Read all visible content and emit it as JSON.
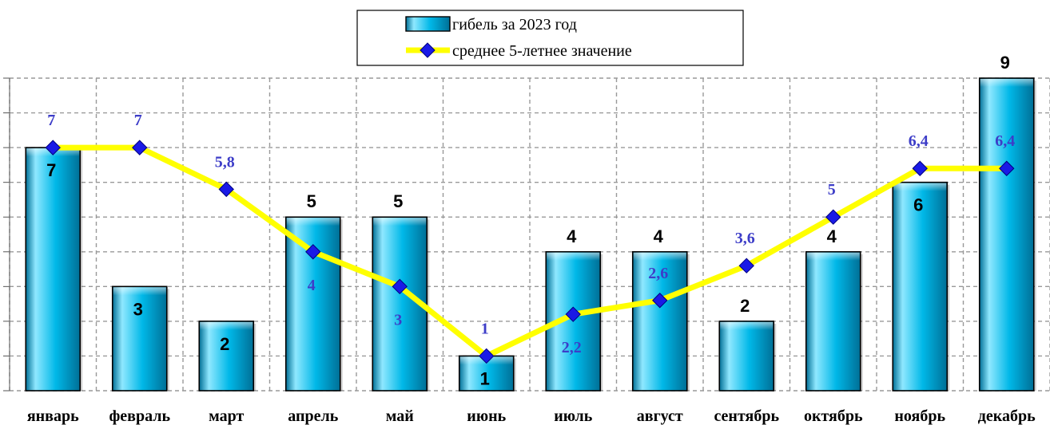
{
  "chart_data": {
    "type": "bar",
    "categories": [
      "январь",
      "февраль",
      "март",
      "апрель",
      "май",
      "июнь",
      "июль",
      "август",
      "сентябрь",
      "октябрь",
      "ноябрь",
      "декабрь"
    ],
    "series": [
      {
        "name": "гибель за 2023 год",
        "type": "bar",
        "values": [
          7,
          3,
          2,
          5,
          5,
          1,
          4,
          4,
          2,
          4,
          6,
          9
        ],
        "labels": [
          "7",
          "3",
          "2",
          "5",
          "5",
          "1",
          "4",
          "4",
          "2",
          "4",
          "6",
          "9"
        ]
      },
      {
        "name": "среднее 5-летнее значение",
        "type": "line",
        "values": [
          7,
          7,
          5.8,
          4,
          3,
          1,
          2.2,
          2.6,
          3.6,
          5,
          6.4,
          6.4
        ],
        "labels": [
          "7",
          "7",
          "5,8",
          "4",
          "3",
          "1",
          "2,2",
          "2,6",
          "3,6",
          "5",
          "6,4",
          "6,4"
        ]
      }
    ],
    "ylim": [
      0,
      9
    ],
    "grid": true,
    "legend": "top-center",
    "colors": {
      "bar_fill": "#00b8e8",
      "bar_light": "#8fe8ff",
      "bar_dark": "#006f96",
      "line": "#ffff00",
      "marker": "#1a1ae6",
      "line_label": "#3d3dc8",
      "grid": "#999999"
    }
  }
}
